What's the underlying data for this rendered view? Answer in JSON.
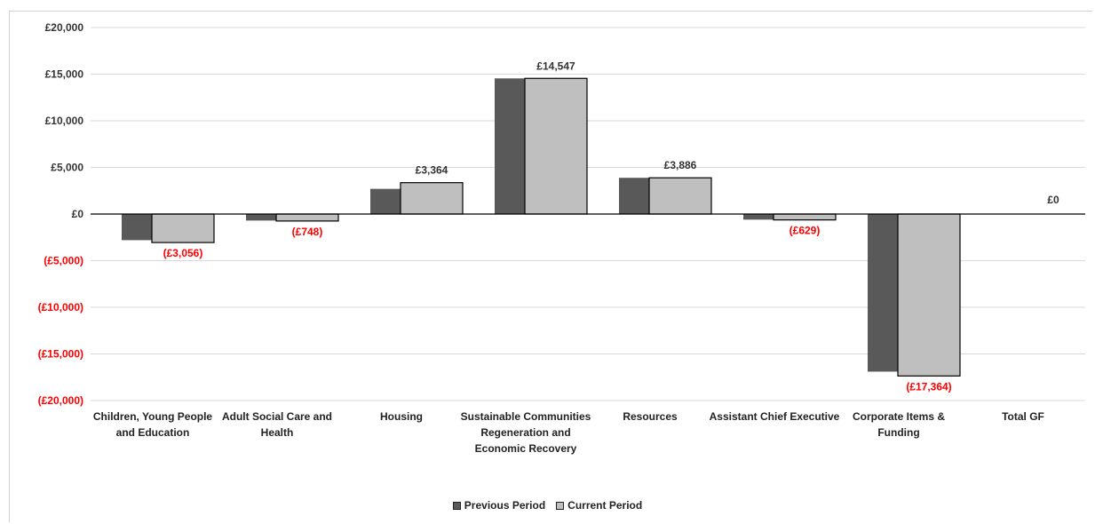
{
  "chart_data": {
    "type": "bar",
    "categories": [
      [
        "Children, Young People",
        "and Education"
      ],
      [
        "Adult Social Care and",
        "Health"
      ],
      [
        "Housing"
      ],
      [
        "Sustainable Communities",
        "Regeneration and",
        "Economic Recovery"
      ],
      [
        "Resources"
      ],
      [
        "Assistant Chief Executive"
      ],
      [
        "Corporate Items &",
        "Funding"
      ],
      [
        "Total GF"
      ]
    ],
    "series": [
      {
        "name": "Previous Period",
        "color": "#595959",
        "values": [
          -2800,
          -700,
          2700,
          14547,
          3886,
          -600,
          -16900,
          0
        ]
      },
      {
        "name": "Current Period",
        "color": "#bfbfbf",
        "values": [
          -3056,
          -748,
          3364,
          14547,
          3886,
          -629,
          -17364,
          0
        ]
      }
    ],
    "data_labels": [
      "(£3,056)",
      "(£748)",
      "£3,364",
      "£14,547",
      "£3,886",
      "(£629)",
      "(£17,364)",
      "£0"
    ],
    "ylim": [
      -20000,
      20000
    ],
    "yticks": [
      20000,
      15000,
      10000,
      5000,
      0,
      -5000,
      -10000,
      -15000,
      -20000
    ],
    "ytick_labels": [
      "£20,000",
      "£15,000",
      "£10,000",
      "£5,000",
      "£0",
      "(£5,000)",
      "(£10,000)",
      "(£15,000)",
      "(£20,000)"
    ],
    "negative_color": "#ff0000",
    "positive_color": "#333333",
    "grid": true,
    "legend_position": "bottom"
  },
  "legend": {
    "previous": "Previous Period",
    "current": "Current Period"
  }
}
